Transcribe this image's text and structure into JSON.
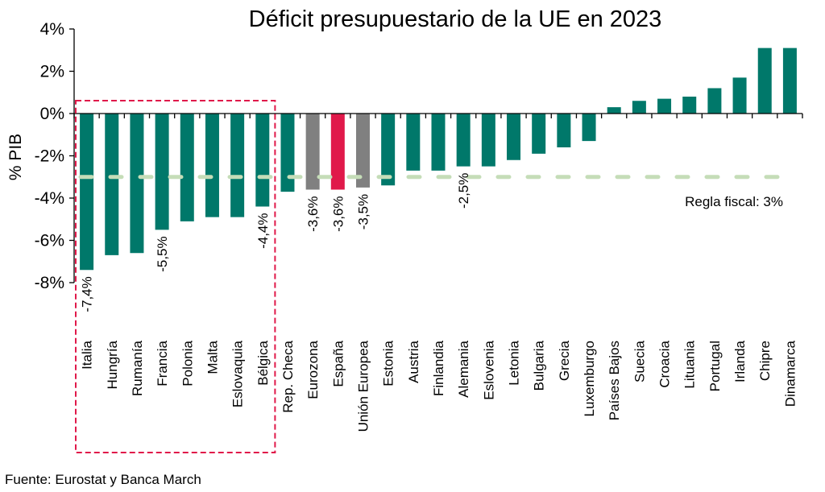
{
  "chart_data": {
    "type": "bar",
    "title": "Déficit presupuestario de la UE en 2023",
    "xlabel": "",
    "ylabel": "% PIB",
    "ylim": [
      -8,
      4
    ],
    "yticks": [
      4,
      2,
      0,
      -2,
      -4,
      -6,
      -8
    ],
    "ytick_labels": [
      "4%",
      "2%",
      "0%",
      "-2%",
      "-4%",
      "-6%",
      "-8%"
    ],
    "grid": false,
    "categories": [
      "Italia",
      "Hungría",
      "Rumanía",
      "Francia",
      "Polonia",
      "Malta",
      "Eslovaquia",
      "Bélgica",
      "Rep. Checa",
      "Eurozona",
      "España",
      "Unión Europea",
      "Estonia",
      "Austria",
      "Finlandia",
      "Alemania",
      "Eslovenia",
      "Letonia",
      "Bulgaria",
      "Grecia",
      "Luxemburgo",
      "Países Bajos",
      "Suecia",
      "Croacia",
      "Lituania",
      "Portugal",
      "Irlanda",
      "Chipre",
      "Dinamarca"
    ],
    "values": [
      -7.4,
      -6.7,
      -6.6,
      -5.5,
      -5.1,
      -4.9,
      -4.9,
      -4.4,
      -3.7,
      -3.6,
      -3.6,
      -3.5,
      -3.4,
      -2.7,
      -2.7,
      -2.5,
      -2.5,
      -2.2,
      -1.9,
      -1.6,
      -1.3,
      0.3,
      0.6,
      0.7,
      0.8,
      1.2,
      1.7,
      3.1,
      3.1
    ],
    "bar_colors": {
      "default": "#00786A",
      "Eurozona": "#808080",
      "España": "#E0194A",
      "Unión Europea": "#808080"
    },
    "data_labels": [
      {
        "category": "Italia",
        "text": "-7,4%"
      },
      {
        "category": "Francia",
        "text": "-5,5%"
      },
      {
        "category": "Bélgica",
        "text": "-4,4%"
      },
      {
        "category": "Eurozona",
        "text": "-3,6%"
      },
      {
        "category": "España",
        "text": "-3,6%"
      },
      {
        "category": "Unión Europea",
        "text": "-3,5%"
      },
      {
        "category": "Alemania",
        "text": "-2,5%"
      }
    ],
    "reference_line": {
      "value": -3,
      "label": "Regla fiscal: 3%",
      "color": "#C5DDB8",
      "style": "dashed"
    },
    "highlight_box": {
      "from": "Italia",
      "to": "Bélgica",
      "color": "#E0194A",
      "style": "dashed"
    },
    "source": "Fuente: Eurostat y Banca March"
  }
}
